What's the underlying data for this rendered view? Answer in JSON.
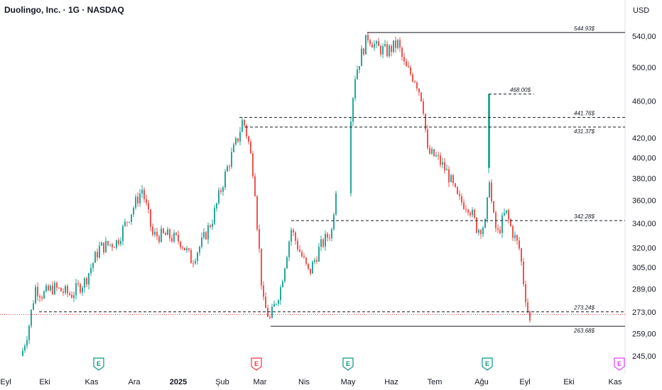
{
  "header": {
    "title": "Duolingo, Inc. · 1G · NASDAQ",
    "currency": "USD"
  },
  "colors": {
    "up": "#26a69a",
    "down": "#ef5350",
    "line": "#131722",
    "current_price_line": "#f23645",
    "earnings_bull": "#089981",
    "earnings_bear": "#f23645",
    "earnings_future": "#e040fb"
  },
  "chart_data": {
    "type": "candlestick",
    "title": "Duolingo, Inc. · 1G · NASDAQ",
    "currency": "USD",
    "y_scale": "log",
    "ylim": [
      240,
      555
    ],
    "y_ticks": [
      "540,00",
      "500,00",
      "460,00",
      "420,00",
      "400,00",
      "380,00",
      "360,00",
      "340,00",
      "320,00",
      "305,00",
      "289,00",
      "273,00",
      "259,00",
      "245,00"
    ],
    "x_ticks": [
      "Eyl",
      "Eki",
      "Kas",
      "Ara",
      "2025",
      "Şub",
      "Mar",
      "Nis",
      "May",
      "Haz",
      "Tem",
      "Ağu",
      "Eyl",
      "Eki",
      "Kas"
    ],
    "price_path": [
      {
        "x": "Eyl",
        "price": 245
      },
      {
        "x": "Eki",
        "price": 295
      },
      {
        "x": "Kas",
        "price": 305
      },
      {
        "x": "Ara",
        "price": 370
      },
      {
        "x": "2025",
        "price": 325
      },
      {
        "x": "Şub",
        "price": 440
      },
      {
        "x": "Mar",
        "price": 262
      },
      {
        "x": "Nis",
        "price": 335
      },
      {
        "x": "May",
        "price": 540
      },
      {
        "x": "Haz",
        "price": 505
      },
      {
        "x": "Tem",
        "price": 395
      },
      {
        "x": "Ağu",
        "price": 345
      },
      {
        "x": "Eyl",
        "price": 263
      }
    ],
    "levels": [
      {
        "label": "544.93$",
        "value": 544.93,
        "style": "solid"
      },
      {
        "label": "468.00$",
        "value": 468.0,
        "style": "dashed"
      },
      {
        "label": "441.76$",
        "value": 441.76,
        "style": "dashed"
      },
      {
        "label": "431.37$",
        "value": 431.37,
        "style": "dashed"
      },
      {
        "label": "342.28$",
        "value": 342.28,
        "style": "dashed"
      },
      {
        "label": "273.24$",
        "value": 273.24,
        "style": "dashed"
      },
      {
        "label": "263.68$",
        "value": 263.68,
        "style": "solid"
      }
    ],
    "earnings_markers": [
      {
        "x": "Eki-Kas",
        "label": "E",
        "kind": "bull"
      },
      {
        "x": "Mar",
        "label": "E",
        "kind": "bear"
      },
      {
        "x": "May",
        "label": "E",
        "kind": "bull"
      },
      {
        "x": "Ağu",
        "label": "E",
        "kind": "bull"
      },
      {
        "x": "Kas",
        "label": "E",
        "kind": "future"
      }
    ]
  }
}
